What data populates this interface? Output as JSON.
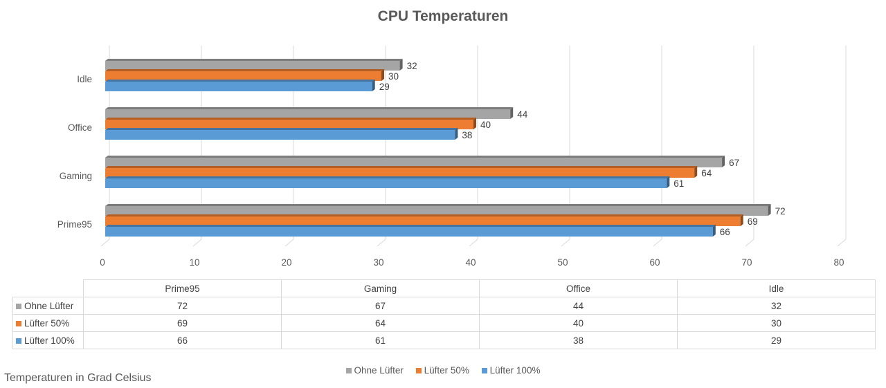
{
  "chart_data": {
    "type": "bar",
    "orientation": "horizontal",
    "title": "CPU Temperaturen",
    "categories": [
      "Idle",
      "Office",
      "Gaming",
      "Prime95"
    ],
    "series": [
      {
        "name": "Ohne Lüfter",
        "color": "#a5a5a5",
        "values": [
          32,
          44,
          67,
          72
        ]
      },
      {
        "name": "Lüfter 50%",
        "color": "#ed7d31",
        "values": [
          30,
          40,
          64,
          69
        ]
      },
      {
        "name": "Lüfter 100%",
        "color": "#5b9bd5",
        "values": [
          29,
          38,
          61,
          66
        ]
      }
    ],
    "xlim": [
      0,
      80
    ],
    "xticks": [
      "0",
      "10",
      "20",
      "30",
      "40",
      "50",
      "60",
      "70",
      "80"
    ],
    "grid": true,
    "data_labels": true,
    "legend_position": "bottom",
    "data_table": {
      "columns": [
        "Prime95",
        "Gaming",
        "Office",
        "Idle"
      ],
      "rows": [
        {
          "name": "Ohne Lüfter",
          "values": [
            "72",
            "67",
            "44",
            "32"
          ]
        },
        {
          "name": "Lüfter 50%",
          "values": [
            "69",
            "64",
            "40",
            "30"
          ]
        },
        {
          "name": "Lüfter 100%",
          "values": [
            "66",
            "61",
            "38",
            "29"
          ]
        }
      ]
    }
  },
  "footnote": "Temperaturen in Grad Celsius"
}
